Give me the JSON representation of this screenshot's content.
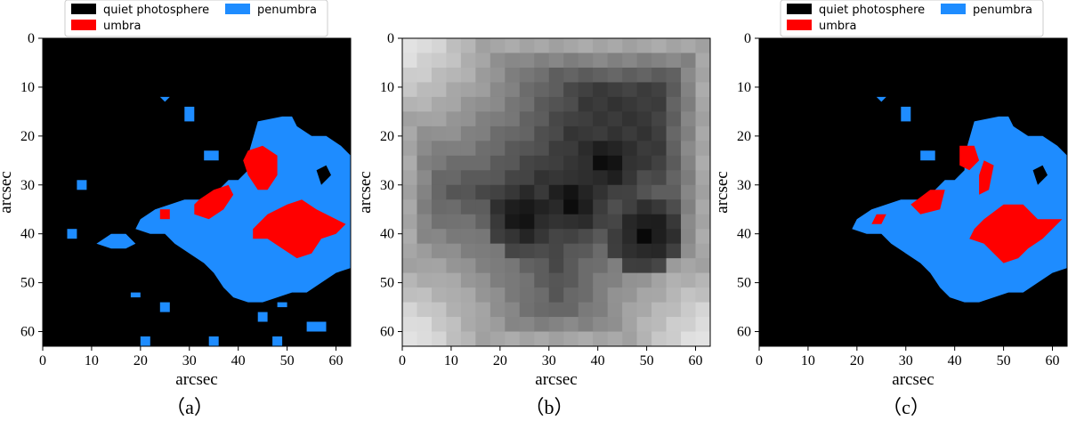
{
  "colors": {
    "quiet": "#000000",
    "umbra": "#ff0000",
    "penumbra": "#1e8cff"
  },
  "chart_data": [
    {
      "type": "heatmap",
      "caption": "（a）",
      "xlabel": "arcsec",
      "ylabel": "arcsec",
      "xlim": [
        0,
        63
      ],
      "ylim": [
        63,
        0
      ],
      "xticks": [
        0,
        10,
        20,
        30,
        40,
        50,
        60
      ],
      "yticks": [
        0,
        10,
        20,
        30,
        40,
        50,
        60
      ],
      "legend": {
        "position": "top",
        "entries": [
          {
            "label": "quiet photosphere",
            "color": "#000000"
          },
          {
            "label": "umbra",
            "color": "#ff0000"
          },
          {
            "label": "penumbra",
            "color": "#1e8cff"
          }
        ]
      },
      "penumbra_regions": [
        [
          [
            42,
            24
          ],
          [
            44,
            17
          ],
          [
            49,
            16
          ],
          [
            51,
            16
          ],
          [
            52,
            18
          ],
          [
            55,
            20
          ],
          [
            58,
            20
          ],
          [
            61,
            22
          ],
          [
            63,
            24
          ],
          [
            63,
            47
          ],
          [
            60,
            48
          ],
          [
            57,
            50
          ],
          [
            54,
            52
          ],
          [
            51,
            52
          ],
          [
            48,
            53
          ],
          [
            45,
            54
          ],
          [
            42,
            54
          ],
          [
            39,
            53
          ],
          [
            37,
            51
          ],
          [
            35,
            48
          ],
          [
            33,
            46
          ],
          [
            30,
            44
          ],
          [
            27,
            42
          ],
          [
            25,
            40
          ],
          [
            22,
            40
          ],
          [
            19,
            39
          ],
          [
            20,
            37
          ],
          [
            23,
            35
          ],
          [
            26,
            34
          ],
          [
            29,
            33
          ],
          [
            33,
            33
          ],
          [
            36,
            31
          ],
          [
            38,
            29
          ],
          [
            40,
            29
          ],
          [
            42,
            27
          ]
        ],
        [
          [
            11,
            42
          ],
          [
            14,
            40
          ],
          [
            17,
            40
          ],
          [
            19,
            42
          ],
          [
            17,
            43
          ],
          [
            14,
            43
          ]
        ],
        [
          [
            5,
            39
          ],
          [
            7,
            39
          ],
          [
            7,
            41
          ],
          [
            5,
            41
          ]
        ],
        [
          [
            7,
            29
          ],
          [
            9,
            29
          ],
          [
            9,
            31
          ],
          [
            7,
            31
          ]
        ],
        [
          [
            24,
            12
          ],
          [
            26,
            12
          ],
          [
            25,
            13
          ]
        ],
        [
          [
            29,
            14
          ],
          [
            31,
            14
          ],
          [
            31,
            17
          ],
          [
            29,
            17
          ]
        ],
        [
          [
            33,
            23
          ],
          [
            36,
            23
          ],
          [
            36,
            25
          ],
          [
            33,
            25
          ]
        ],
        [
          [
            18,
            52
          ],
          [
            20,
            52
          ],
          [
            20,
            53
          ],
          [
            18,
            53
          ]
        ],
        [
          [
            24,
            54
          ],
          [
            26,
            54
          ],
          [
            26,
            56
          ],
          [
            24,
            56
          ]
        ],
        [
          [
            20,
            61
          ],
          [
            22,
            61
          ],
          [
            22,
            63
          ],
          [
            20,
            63
          ]
        ],
        [
          [
            34,
            61
          ],
          [
            36,
            61
          ],
          [
            36,
            63
          ],
          [
            34,
            63
          ]
        ],
        [
          [
            47,
            61
          ],
          [
            49,
            61
          ],
          [
            49,
            63
          ],
          [
            47,
            63
          ]
        ],
        [
          [
            44,
            56
          ],
          [
            46,
            56
          ],
          [
            46,
            58
          ],
          [
            44,
            58
          ]
        ],
        [
          [
            48,
            54
          ],
          [
            50,
            54
          ],
          [
            50,
            55
          ],
          [
            48,
            55
          ]
        ],
        [
          [
            54,
            58
          ],
          [
            58,
            58
          ],
          [
            58,
            60
          ],
          [
            54,
            60
          ]
        ]
      ],
      "umbra_regions": [
        [
          [
            42,
            23
          ],
          [
            45,
            22
          ],
          [
            48,
            24
          ],
          [
            48,
            28
          ],
          [
            46,
            31
          ],
          [
            44,
            31
          ],
          [
            42,
            28
          ],
          [
            41,
            25
          ]
        ],
        [
          [
            32,
            33
          ],
          [
            35,
            31
          ],
          [
            38,
            30
          ],
          [
            39,
            32
          ],
          [
            37,
            35
          ],
          [
            34,
            37
          ],
          [
            31,
            36
          ],
          [
            31,
            34
          ]
        ],
        [
          [
            24,
            35
          ],
          [
            26,
            35
          ],
          [
            26,
            37
          ],
          [
            24,
            37
          ]
        ],
        [
          [
            46,
            36
          ],
          [
            50,
            34
          ],
          [
            53,
            33
          ],
          [
            56,
            35
          ],
          [
            60,
            37
          ],
          [
            62,
            38
          ],
          [
            60,
            40
          ],
          [
            57,
            41
          ],
          [
            55,
            44
          ],
          [
            52,
            45
          ],
          [
            49,
            43
          ],
          [
            46,
            41
          ],
          [
            43,
            41
          ],
          [
            43,
            39
          ]
        ]
      ],
      "quiet_holes": [
        [
          [
            56,
            27
          ],
          [
            58,
            26
          ],
          [
            59,
            28
          ],
          [
            57,
            30
          ]
        ]
      ]
    },
    {
      "type": "heatmap",
      "caption": "（b）",
      "xlabel": "arcsec",
      "ylabel": "arcsec",
      "xlim": [
        0,
        63
      ],
      "ylim": [
        63,
        0
      ],
      "xticks": [
        0,
        10,
        20,
        30,
        40,
        50,
        60
      ],
      "yticks": [
        0,
        10,
        20,
        30,
        40,
        50,
        60
      ],
      "colormap": "gray",
      "grid_size": 21,
      "dark_centers": [
        [
          42,
          25
        ],
        [
          50,
          40
        ],
        [
          35,
          33
        ],
        [
          25,
          36
        ]
      ],
      "bright_corners": [
        [
          0,
          0
        ],
        [
          0,
          63
        ],
        [
          63,
          63
        ]
      ]
    },
    {
      "type": "heatmap",
      "caption": "（c）",
      "xlabel": "arcsec",
      "ylabel": "arcsec",
      "xlim": [
        0,
        63
      ],
      "ylim": [
        63,
        0
      ],
      "xticks": [
        0,
        10,
        20,
        30,
        40,
        50,
        60
      ],
      "yticks": [
        0,
        10,
        20,
        30,
        40,
        50,
        60
      ],
      "legend": {
        "position": "top",
        "entries": [
          {
            "label": "quiet photosphere",
            "color": "#000000"
          },
          {
            "label": "umbra",
            "color": "#ff0000"
          },
          {
            "label": "penumbra",
            "color": "#1e8cff"
          }
        ]
      },
      "penumbra_regions": [
        [
          [
            42,
            24
          ],
          [
            44,
            17
          ],
          [
            49,
            16
          ],
          [
            51,
            16
          ],
          [
            52,
            18
          ],
          [
            55,
            20
          ],
          [
            58,
            20
          ],
          [
            61,
            22
          ],
          [
            63,
            24
          ],
          [
            63,
            47
          ],
          [
            60,
            48
          ],
          [
            57,
            50
          ],
          [
            54,
            52
          ],
          [
            51,
            52
          ],
          [
            48,
            53
          ],
          [
            45,
            54
          ],
          [
            42,
            54
          ],
          [
            39,
            53
          ],
          [
            37,
            51
          ],
          [
            35,
            48
          ],
          [
            33,
            46
          ],
          [
            30,
            44
          ],
          [
            27,
            42
          ],
          [
            25,
            40
          ],
          [
            22,
            40
          ],
          [
            19,
            39
          ],
          [
            20,
            37
          ],
          [
            23,
            35
          ],
          [
            26,
            34
          ],
          [
            29,
            33
          ],
          [
            33,
            33
          ],
          [
            36,
            31
          ],
          [
            38,
            29
          ],
          [
            40,
            29
          ],
          [
            42,
            27
          ]
        ],
        [
          [
            24,
            12
          ],
          [
            26,
            12
          ],
          [
            25,
            13
          ]
        ],
        [
          [
            29,
            14
          ],
          [
            31,
            14
          ],
          [
            31,
            17
          ],
          [
            29,
            17
          ]
        ],
        [
          [
            33,
            23
          ],
          [
            36,
            23
          ],
          [
            36,
            25
          ],
          [
            33,
            25
          ]
        ]
      ],
      "umbra_regions": [
        [
          [
            41,
            22
          ],
          [
            44,
            22
          ],
          [
            45,
            25
          ],
          [
            43,
            27
          ],
          [
            41,
            26
          ]
        ],
        [
          [
            46,
            25
          ],
          [
            48,
            26
          ],
          [
            47,
            31
          ],
          [
            45,
            32
          ],
          [
            45,
            28
          ]
        ],
        [
          [
            31,
            34
          ],
          [
            35,
            31
          ],
          [
            38,
            31
          ],
          [
            37,
            35
          ],
          [
            33,
            36
          ]
        ],
        [
          [
            24,
            36
          ],
          [
            26,
            36
          ],
          [
            25,
            38
          ],
          [
            23,
            38
          ]
        ],
        [
          [
            46,
            37
          ],
          [
            50,
            34
          ],
          [
            54,
            34
          ],
          [
            57,
            37
          ],
          [
            62,
            37
          ],
          [
            58,
            41
          ],
          [
            55,
            43
          ],
          [
            53,
            45
          ],
          [
            50,
            46
          ],
          [
            48,
            44
          ],
          [
            46,
            42
          ],
          [
            43,
            41
          ],
          [
            44,
            39
          ]
        ]
      ],
      "quiet_holes": [
        [
          [
            56,
            27
          ],
          [
            58,
            26
          ],
          [
            59,
            28
          ],
          [
            57,
            30
          ]
        ]
      ]
    }
  ]
}
